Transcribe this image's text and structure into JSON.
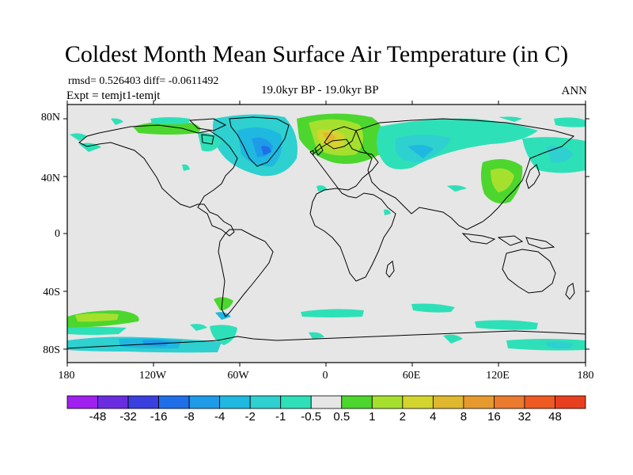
{
  "title": "Coldest Month Mean Surface Air Temperature (in C)",
  "stats_line": "rmsd= 0.526403 diff= -0.0611492",
  "experiment_line": "Expt = temjt1-temjt",
  "period": "19.0kyr BP - 19.0kyr BP",
  "season": "ANN",
  "map": {
    "background_color": "#e6e6e6",
    "lat_ticks": [
      "80N",
      "40N",
      "0",
      "40S",
      "80S"
    ],
    "lon_ticks": [
      "180",
      "120W",
      "60W",
      "0",
      "60E",
      "120E",
      "180"
    ]
  },
  "colorbar": {
    "colors": [
      "#a020f0",
      "#6a2ce0",
      "#3a3fe0",
      "#1f6fe8",
      "#1e9be8",
      "#1fb8e0",
      "#2ed0d0",
      "#2ee0b8",
      "#e6e6e6",
      "#4cd62e",
      "#a6e02e",
      "#d4d42e",
      "#e0b82e",
      "#e69a2e",
      "#ea7a2e",
      "#ee5a22",
      "#e8401e"
    ],
    "labels": [
      "-48",
      "-32",
      "-16",
      "-8",
      "-4",
      "-2",
      "-1",
      "-0.5",
      "0.5",
      "1",
      "2",
      "4",
      "8",
      "16",
      "32",
      "48"
    ]
  }
}
